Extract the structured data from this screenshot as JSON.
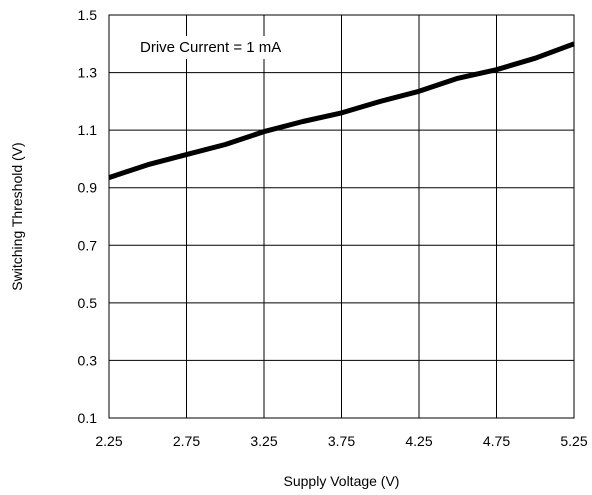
{
  "chart_data": {
    "type": "line",
    "xlabel": "Supply Voltage (V)",
    "ylabel": "Switching Threshold (V)",
    "annotation": "Drive Current = 1 mA",
    "xlim": [
      2.25,
      5.25
    ],
    "ylim": [
      0.1,
      1.5
    ],
    "x_ticks": [
      "2.25",
      "2.75",
      "3.25",
      "3.75",
      "4.25",
      "4.75",
      "5.25"
    ],
    "y_ticks": [
      "1.5",
      "1.3",
      "1.1",
      "0.9",
      "0.7",
      "0.5",
      "0.3",
      "0.1"
    ],
    "grid": true,
    "series": [
      {
        "color": "#000000",
        "x": [
          2.25,
          2.5,
          2.75,
          3.0,
          3.25,
          3.5,
          3.75,
          4.0,
          4.25,
          4.5,
          4.75,
          5.0,
          5.25
        ],
        "y": [
          0.935,
          0.98,
          1.015,
          1.05,
          1.095,
          1.13,
          1.16,
          1.2,
          1.235,
          1.28,
          1.31,
          1.35,
          1.4
        ]
      }
    ]
  }
}
